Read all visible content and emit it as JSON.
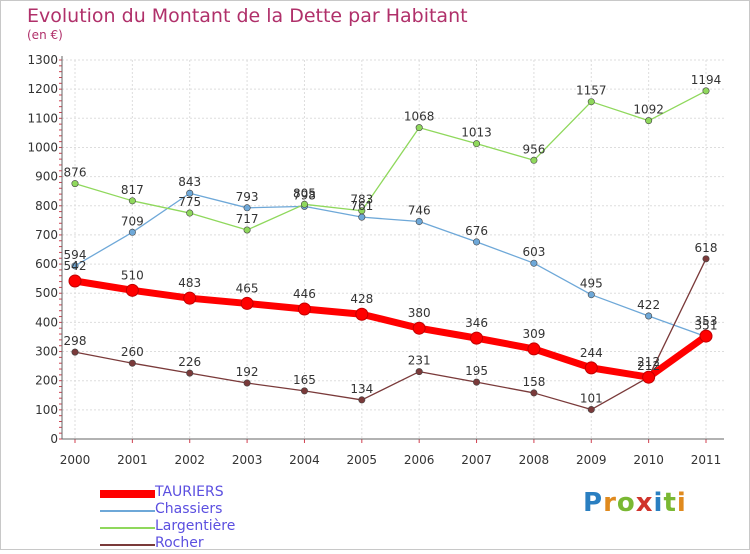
{
  "header": {
    "title": "Evolution du Montant de la Dette par Habitant",
    "subtitle": "(en €)"
  },
  "logo": {
    "text": "Proxiti",
    "colors": [
      "#2a7fc1",
      "#e08a1e",
      "#7ab833",
      "#d0342c",
      "#2a7fc1",
      "#7ab833",
      "#e08a1e"
    ]
  },
  "chart_data": {
    "type": "line",
    "x": [
      "2000",
      "2001",
      "2002",
      "2003",
      "2004",
      "2005",
      "2006",
      "2007",
      "2008",
      "2009",
      "2010",
      "2011"
    ],
    "ylim": [
      0,
      1300
    ],
    "yticks": [
      "0",
      "100",
      "200",
      "300",
      "400",
      "500",
      "600",
      "700",
      "800",
      "900",
      "1000",
      "1100",
      "1200",
      "1300"
    ],
    "grid": true,
    "legend_position": "bottom-left",
    "series": [
      {
        "name": "TAURIERS",
        "color": "#ff0000",
        "width": 7,
        "marker": 6,
        "values": [
          542,
          510,
          483,
          465,
          446,
          428,
          380,
          346,
          309,
          244,
          212,
          353
        ]
      },
      {
        "name": "Chassiers",
        "color": "#6ea8d8",
        "width": 1.3,
        "marker": 3.2,
        "values": [
          594,
          709,
          843,
          793,
          798,
          761,
          746,
          676,
          603,
          495,
          422,
          351
        ]
      },
      {
        "name": "Largentière",
        "color": "#8fd85c",
        "width": 1.3,
        "marker": 3.2,
        "values": [
          876,
          817,
          775,
          717,
          805,
          783,
          1068,
          1013,
          956,
          1157,
          1092,
          1194
        ]
      },
      {
        "name": "Rocher",
        "color": "#7a3a3a",
        "width": 1.3,
        "marker": 3.2,
        "values": [
          298,
          260,
          226,
          192,
          165,
          134,
          231,
          195,
          158,
          101,
          212,
          618
        ]
      }
    ]
  }
}
